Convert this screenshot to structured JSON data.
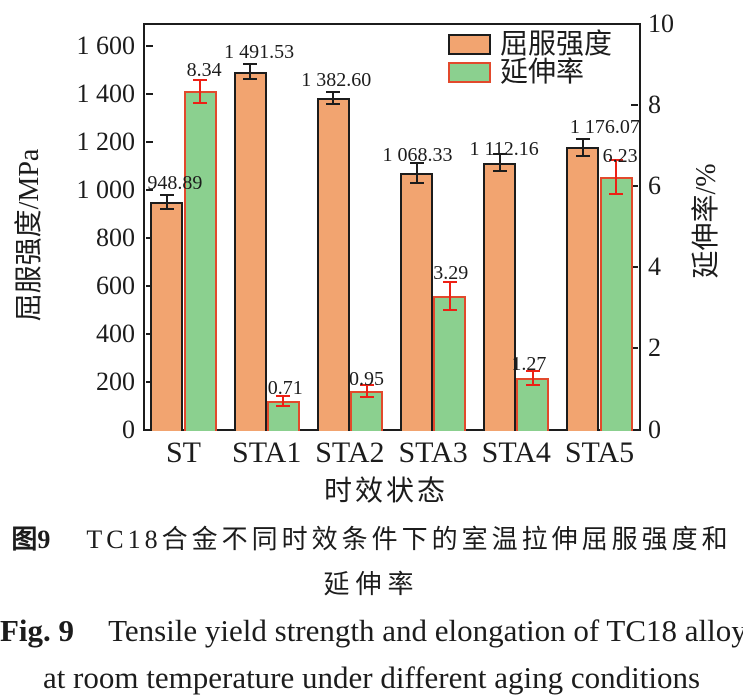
{
  "chart_data": {
    "type": "bar",
    "categories": [
      "ST",
      "STA1",
      "STA2",
      "STA3",
      "STA4",
      "STA5"
    ],
    "series": [
      {
        "name": "屈服强度",
        "axis": "left",
        "color": "#F2A470",
        "edge_color": "#1c1c1c",
        "err_color": "#1c1c1c",
        "values": [
          948.89,
          1491.53,
          1382.6,
          1068.33,
          1112.16,
          1176.07
        ],
        "errors": [
          30,
          31,
          25,
          42,
          35,
          35
        ],
        "labels": [
          "948.89",
          "1 491.53",
          "1 382.60",
          "1 068.33",
          "1 112.16",
          "1 176.07"
        ]
      },
      {
        "name": "延伸率",
        "axis": "right",
        "color": "#8BD08F",
        "edge_color": "#E2492C",
        "err_color": "#ED2015",
        "values": [
          8.34,
          0.71,
          0.95,
          3.29,
          1.27,
          6.23
        ],
        "errors": [
          0.28,
          0.12,
          0.15,
          0.34,
          0.17,
          0.42
        ],
        "labels": [
          "8.34",
          "0.71",
          "0.95",
          "3.29",
          "1.27",
          "6.23"
        ]
      }
    ],
    "ylabel_left": "屈服强度/MPa",
    "ylabel_right": "延伸率/%",
    "xlabel": "时效状态",
    "left_ticks": [
      "0",
      "200",
      "400",
      "600",
      "800",
      "1 000",
      "1 200",
      "1 400",
      "1 600"
    ],
    "left_tick_values": [
      0,
      200,
      400,
      600,
      800,
      1000,
      1200,
      1400,
      1600
    ],
    "right_ticks": [
      "0",
      "2",
      "4",
      "6",
      "8",
      "10"
    ],
    "right_tick_values": [
      0,
      2,
      4,
      6,
      8,
      10
    ],
    "ylim_left": [
      0,
      1690
    ],
    "ylim_right": [
      0,
      10
    ],
    "grid": false,
    "legend_position": "top-right-inside"
  },
  "captions": {
    "zh_label": "图9",
    "zh_text": "TC18合金不同时效条件下的室温拉伸屈服强度和",
    "zh_text2": "延伸率",
    "en_label": "Fig. 9",
    "en_text": "Tensile yield strength and elongation of TC18 alloy",
    "en_text2": "at room temperature under different aging conditions"
  }
}
